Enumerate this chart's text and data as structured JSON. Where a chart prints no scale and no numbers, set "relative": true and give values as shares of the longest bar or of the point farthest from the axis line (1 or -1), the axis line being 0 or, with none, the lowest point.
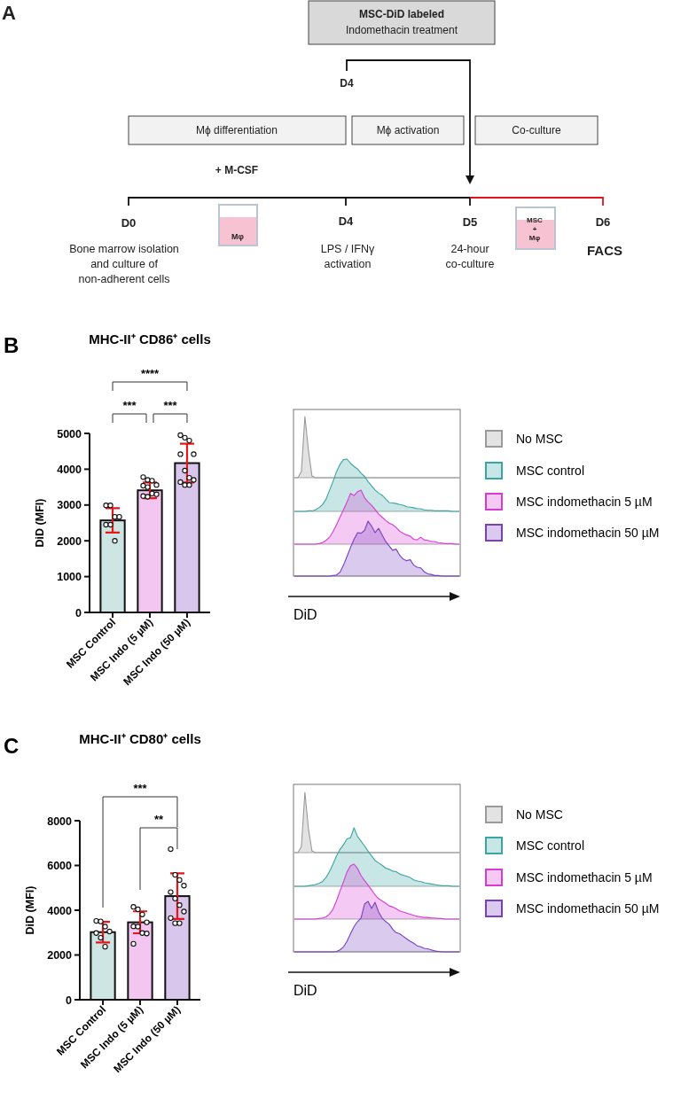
{
  "chart_data": [
    {
      "type": "other",
      "annotations": [
        "A",
        "MSC-DiD labeled",
        "Indomethacin treatment",
        "D4",
        "Mϕ differentiation",
        "Mϕ activation",
        "Co-culture",
        "+ M-CSF",
        "D0",
        "Mφ",
        "D4",
        "D5",
        "MSC\n+\nMφ",
        "D6",
        "Bone marrow isolation\nand culture of\nnon-adherent cells",
        "LPS / IFNγ\nactivation",
        "24-hour\nco-culture",
        "FACS"
      ]
    },
    {
      "type": "bar",
      "title": "MHC-II⁺ CD86⁺ cells",
      "ylabel": "DiD (MFI)",
      "categories": [
        "MSC Control",
        "MSC Indo (5 µM)",
        "MSC Indo (50 µM)"
      ],
      "ylim": [
        0,
        5000
      ],
      "yticks": [
        0,
        1000,
        2000,
        3000,
        4000,
        5000
      ],
      "marker": "circle",
      "annotations": [
        "B",
        "****",
        "***",
        "***"
      ],
      "series": [
        {
          "type": "bar",
          "colors": [
            "#cde5e3",
            "#f2c6f0",
            "#d9c6ec"
          ],
          "values": [
            2570,
            3410,
            4170
          ],
          "errors": [
            340,
            220,
            540
          ]
        },
        {
          "type": "scatter",
          "color": "#111111",
          "x": [
            "MSC Control",
            "MSC Control",
            "MSC Control",
            "MSC Control",
            "MSC Control",
            "MSC Control",
            "MSC Control",
            "MSC Indo (5 µM)",
            "MSC Indo (5 µM)",
            "MSC Indo (5 µM)",
            "MSC Indo (5 µM)",
            "MSC Indo (5 µM)",
            "MSC Indo (5 µM)",
            "MSC Indo (5 µM)",
            "MSC Indo (5 µM)",
            "MSC Indo (5 µM)",
            "MSC Indo (5 µM)",
            "MSC Indo (50 µM)",
            "MSC Indo (50 µM)",
            "MSC Indo (50 µM)",
            "MSC Indo (50 µM)",
            "MSC Indo (50 µM)",
            "MSC Indo (50 µM)",
            "MSC Indo (50 µM)",
            "MSC Indo (50 µM)",
            "MSC Indo (50 µM)",
            "MSC Indo (50 µM)",
            "MSC Indo (50 µM)"
          ],
          "values": [
            2990,
            2990,
            2670,
            2670,
            2450,
            2450,
            2000,
            3780,
            3700,
            3680,
            3560,
            3540,
            3500,
            3320,
            3300,
            3250,
            3230,
            4950,
            4880,
            4800,
            4420,
            4420,
            3960,
            3760,
            3700,
            3640,
            3560,
            3560
          ]
        }
      ]
    },
    {
      "type": "area",
      "relative": true,
      "legend": "right",
      "categories": [
        null,
        null,
        null,
        null,
        null,
        null,
        null,
        null,
        null,
        null,
        null,
        null,
        null,
        null,
        null,
        null,
        null,
        null,
        null,
        null,
        null,
        null,
        null,
        null,
        null,
        null,
        null,
        null,
        null,
        null,
        null,
        null,
        null,
        null,
        null,
        null,
        null,
        null,
        null,
        null,
        null,
        null,
        null,
        null,
        null,
        null,
        null,
        null
      ],
      "series": [
        {
          "name": "No MSC",
          "color": "#9a9a9a",
          "values": [
            0,
            0,
            0.1,
            1,
            0.45,
            0.03,
            0,
            0,
            0,
            0,
            0,
            0,
            0,
            0,
            0,
            0,
            0,
            0,
            0,
            0,
            0,
            0,
            0,
            0,
            0,
            0,
            0,
            0,
            0,
            0,
            0,
            0,
            0,
            0,
            0,
            0,
            0,
            0,
            0,
            0,
            0,
            0,
            0,
            0,
            0,
            0,
            0,
            0
          ]
        }
      ]
    },
    {
      "type": "area",
      "relative": true,
      "legend": "right",
      "categories": [
        null,
        null,
        null,
        null,
        null,
        null,
        null,
        null,
        null,
        null,
        null,
        null,
        null,
        null,
        null,
        null,
        null,
        null,
        null,
        null,
        null,
        null,
        null,
        null,
        null,
        null,
        null,
        null,
        null,
        null,
        null,
        null,
        null,
        null,
        null,
        null,
        null,
        null,
        null,
        null,
        null,
        null,
        null,
        null,
        null,
        null,
        null,
        null
      ],
      "series": [
        {
          "name": "MSC control",
          "color": "#3aa6a0",
          "values": [
            0,
            0,
            0,
            0,
            0.01,
            0.01,
            0.03,
            0.07,
            0.13,
            0.23,
            0.4,
            0.57,
            0.76,
            0.9,
            0.99,
            1,
            0.92,
            0.86,
            0.81,
            0.73,
            0.67,
            0.57,
            0.49,
            0.41,
            0.35,
            0.31,
            0.24,
            0.17,
            0.16,
            0.15,
            0.13,
            0.12,
            0.09,
            0.08,
            0.07,
            0.05,
            0.05,
            0.03,
            0.02,
            0.02,
            0.01,
            0.01,
            0.01,
            0.01,
            0.01,
            0,
            0,
            0
          ]
        }
      ]
    },
    {
      "type": "area",
      "relative": true,
      "legend": "right",
      "categories": [
        null,
        null,
        null,
        null,
        null,
        null,
        null,
        null,
        null,
        null,
        null,
        null,
        null,
        null,
        null,
        null,
        null,
        null,
        null,
        null,
        null,
        null,
        null,
        null,
        null,
        null,
        null,
        null,
        null,
        null,
        null,
        null,
        null,
        null,
        null,
        null,
        null,
        null,
        null,
        null,
        null,
        null,
        null,
        null,
        null,
        null,
        null,
        null
      ],
      "series": [
        {
          "name": "MSC indomethacin 5 µM",
          "color": "#d63cd3",
          "values": [
            0,
            0,
            0,
            0,
            0,
            0,
            0,
            0.01,
            0.03,
            0.07,
            0.13,
            0.23,
            0.36,
            0.5,
            0.64,
            0.78,
            0.94,
            0.9,
            0.97,
            1,
            0.86,
            0.78,
            0.72,
            0.64,
            0.56,
            0.5,
            0.44,
            0.39,
            0.36,
            0.31,
            0.24,
            0.2,
            0.17,
            0.15,
            0.09,
            0.08,
            0.13,
            0.08,
            0.07,
            0.05,
            0.05,
            0.03,
            0.02,
            0.01,
            0.01,
            0.01,
            0,
            0
          ]
        }
      ]
    },
    {
      "type": "area",
      "relative": true,
      "legend": "right",
      "xlabel": "DiD",
      "categories": [
        null,
        null,
        null,
        null,
        null,
        null,
        null,
        null,
        null,
        null,
        null,
        null,
        null,
        null,
        null,
        null,
        null,
        null,
        null,
        null,
        null,
        null,
        null,
        null,
        null,
        null,
        null,
        null,
        null,
        null,
        null,
        null,
        null,
        null,
        null,
        null,
        null,
        null,
        null,
        null,
        null,
        null,
        null,
        null,
        null,
        null,
        null,
        null
      ],
      "series": [
        {
          "name": "MSC indomethacin 50 µM",
          "color": "#7a3fc0",
          "values": [
            0,
            0,
            0,
            0,
            0,
            0,
            0,
            0,
            0,
            0,
            0,
            0.01,
            0.02,
            0.07,
            0.2,
            0.36,
            0.52,
            0.67,
            0.79,
            0.78,
            0.83,
            1,
            0.91,
            0.79,
            0.87,
            0.75,
            0.63,
            0.55,
            0.47,
            0.49,
            0.38,
            0.31,
            0.28,
            0.3,
            0.2,
            0.16,
            0.15,
            0.08,
            0.04,
            0.03,
            0.01,
            0.01,
            0,
            0,
            0,
            0,
            0,
            0
          ]
        }
      ]
    },
    {
      "type": "bar",
      "title": "MHC-II⁺ CD80⁺ cells",
      "ylabel": "DiD (MFI)",
      "categories": [
        "MSC Control",
        "MSC Indo (5 µM)",
        "MSC Indo (50 µM)"
      ],
      "ylim": [
        0,
        8000
      ],
      "yticks": [
        0,
        2000,
        4000,
        6000,
        8000
      ],
      "marker": "circle",
      "annotations": [
        "C",
        "***",
        "**"
      ],
      "series": [
        {
          "type": "bar",
          "colors": [
            "#cde5e3",
            "#f2c6f0",
            "#d9c6ec"
          ],
          "values": [
            3020,
            3460,
            4630
          ],
          "errors": [
            460,
            490,
            1020
          ]
        },
        {
          "type": "scatter",
          "color": "#111111",
          "x": [
            "MSC Control",
            "MSC Control",
            "MSC Control",
            "MSC Control",
            "MSC Control",
            "MSC Control",
            "MSC Control",
            "MSC Indo (5 µM)",
            "MSC Indo (5 µM)",
            "MSC Indo (5 µM)",
            "MSC Indo (5 µM)",
            "MSC Indo (5 µM)",
            "MSC Indo (5 µM)",
            "MSC Indo (5 µM)",
            "MSC Indo (5 µM)",
            "MSC Indo (5 µM)",
            "MSC Indo (50 µM)",
            "MSC Indo (50 µM)",
            "MSC Indo (50 µM)",
            "MSC Indo (50 µM)",
            "MSC Indo (50 µM)",
            "MSC Indo (50 µM)",
            "MSC Indo (50 µM)",
            "MSC Indo (50 µM)",
            "MSC Indo (50 µM)",
            "MSC Indo (50 µM)",
            "MSC Indo (50 µM)"
          ],
          "values": [
            3520,
            3500,
            3270,
            3050,
            2980,
            2770,
            2370,
            4150,
            4040,
            3810,
            3460,
            3280,
            3270,
            2980,
            2960,
            2500,
            6730,
            5580,
            5350,
            5100,
            4810,
            4520,
            4230,
            3940,
            3650,
            3420,
            3420
          ]
        }
      ]
    },
    {
      "type": "area",
      "relative": true,
      "legend": "right",
      "categories": [
        null,
        null,
        null,
        null,
        null,
        null,
        null,
        null,
        null,
        null,
        null,
        null,
        null,
        null,
        null,
        null,
        null,
        null,
        null,
        null,
        null,
        null,
        null,
        null,
        null,
        null,
        null,
        null,
        null,
        null,
        null,
        null,
        null,
        null,
        null,
        null,
        null,
        null,
        null,
        null,
        null,
        null,
        null,
        null,
        null,
        null,
        null,
        null
      ],
      "series": [
        {
          "name": "No MSC",
          "color": "#9a9a9a",
          "values": [
            0,
            0,
            0.1,
            1,
            0.4,
            0.03,
            0,
            0,
            0,
            0,
            0,
            0,
            0,
            0,
            0,
            0,
            0,
            0,
            0,
            0,
            0,
            0,
            0,
            0,
            0,
            0,
            0,
            0,
            0,
            0,
            0,
            0,
            0,
            0,
            0,
            0,
            0,
            0,
            0,
            0,
            0,
            0,
            0,
            0,
            0,
            0,
            0,
            0
          ]
        }
      ]
    },
    {
      "type": "area",
      "relative": true,
      "legend": "right",
      "categories": [
        null,
        null,
        null,
        null,
        null,
        null,
        null,
        null,
        null,
        null,
        null,
        null,
        null,
        null,
        null,
        null,
        null,
        null,
        null,
        null,
        null,
        null,
        null,
        null,
        null,
        null,
        null,
        null,
        null,
        null,
        null,
        null,
        null,
        null,
        null,
        null,
        null,
        null,
        null,
        null,
        null,
        null,
        null,
        null,
        null,
        null,
        null,
        null
      ],
      "series": [
        {
          "name": "MSC control",
          "color": "#3aa6a0",
          "values": [
            0,
            0,
            0,
            0,
            0.01,
            0.02,
            0.03,
            0.05,
            0.08,
            0.15,
            0.25,
            0.38,
            0.52,
            0.63,
            0.71,
            0.81,
            0.83,
            1,
            0.85,
            0.77,
            0.69,
            0.6,
            0.52,
            0.44,
            0.4,
            0.36,
            0.31,
            0.29,
            0.26,
            0.25,
            0.21,
            0.19,
            0.17,
            0.15,
            0.11,
            0.09,
            0.08,
            0.06,
            0.05,
            0.04,
            0.03,
            0.02,
            0.01,
            0.01,
            0.01,
            0,
            0,
            0
          ]
        }
      ]
    },
    {
      "type": "area",
      "relative": true,
      "legend": "right",
      "categories": [
        null,
        null,
        null,
        null,
        null,
        null,
        null,
        null,
        null,
        null,
        null,
        null,
        null,
        null,
        null,
        null,
        null,
        null,
        null,
        null,
        null,
        null,
        null,
        null,
        null,
        null,
        null,
        null,
        null,
        null,
        null,
        null,
        null,
        null,
        null,
        null,
        null,
        null,
        null,
        null,
        null,
        null,
        null,
        null,
        null,
        null,
        null,
        null
      ],
      "series": [
        {
          "name": "MSC indomethacin 5 µM",
          "color": "#d63cd3",
          "values": [
            0,
            0,
            0,
            0,
            0,
            0,
            0,
            0.01,
            0.02,
            0.04,
            0.09,
            0.18,
            0.33,
            0.51,
            0.68,
            0.86,
            0.97,
            1,
            0.92,
            0.79,
            0.7,
            0.62,
            0.53,
            0.44,
            0.37,
            0.33,
            0.29,
            0.24,
            0.22,
            0.19,
            0.15,
            0.13,
            0.11,
            0.09,
            0.07,
            0.05,
            0.04,
            0.03,
            0.03,
            0.02,
            0.02,
            0.01,
            0.01,
            0,
            0,
            0,
            0,
            0
          ]
        }
      ]
    },
    {
      "type": "area",
      "relative": true,
      "legend": "right",
      "xlabel": "DiD",
      "categories": [
        null,
        null,
        null,
        null,
        null,
        null,
        null,
        null,
        null,
        null,
        null,
        null,
        null,
        null,
        null,
        null,
        null,
        null,
        null,
        null,
        null,
        null,
        null,
        null,
        null,
        null,
        null,
        null,
        null,
        null,
        null,
        null,
        null,
        null,
        null,
        null,
        null,
        null,
        null,
        null,
        null,
        null,
        null,
        null,
        null,
        null,
        null,
        null
      ],
      "series": [
        {
          "name": "MSC indomethacin 50 µM",
          "color": "#7a3fc0",
          "values": [
            0,
            0,
            0,
            0,
            0,
            0,
            0,
            0,
            0,
            0,
            0,
            0,
            0.01,
            0.04,
            0.1,
            0.21,
            0.36,
            0.5,
            0.6,
            0.67,
            0.95,
            1,
            0.86,
            0.98,
            0.79,
            0.67,
            0.6,
            0.55,
            0.45,
            0.38,
            0.36,
            0.31,
            0.26,
            0.21,
            0.17,
            0.12,
            0.1,
            0.07,
            0.06,
            0.04,
            0.02,
            0.01,
            0,
            0,
            0,
            0,
            0,
            0
          ]
        }
      ]
    }
  ]
}
